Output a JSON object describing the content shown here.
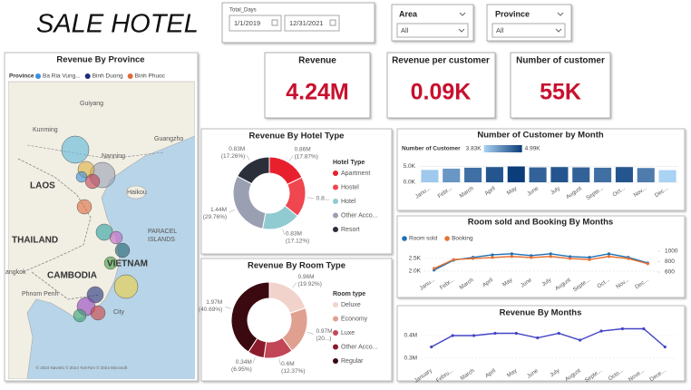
{
  "header": {
    "title": "SALE HOTEL"
  },
  "filters": {
    "date": {
      "label": "Total_Days",
      "start": "1/1/2019",
      "end": "12/31/2021"
    },
    "area": {
      "label": "Area",
      "value": "All"
    },
    "province": {
      "label": "Province",
      "value": "All"
    }
  },
  "kpis": [
    {
      "label": "Revenue",
      "value": "4.24M"
    },
    {
      "label": "Revenue per customer",
      "value": "0.09K"
    },
    {
      "label": "Number of customer",
      "value": "55K"
    }
  ],
  "map": {
    "title": "Revenue By Province",
    "legend_title": "Province",
    "legend": [
      {
        "name": "Ba Ria Vung...",
        "color": "#3a8fdc"
      },
      {
        "name": "Binh Duong",
        "color": "#1f2d7a"
      },
      {
        "name": "Binh Phuoc",
        "color": "#e06b3a"
      }
    ],
    "labels": [
      "Guiyang",
      "Kunming",
      "Nanning",
      "Guangzho",
      "LAOS",
      "Haikou",
      "THAILAND",
      "PARACEL",
      "ISLANDS",
      "CAMBODIA",
      "VIETNAM",
      "angkok",
      "Phnom Penh",
      "City"
    ],
    "attribution": "© 2024 NavInfo © 2024 TomTom © 2024 Microsoft"
  },
  "chart_data": [
    {
      "type": "donut",
      "title": "Revenue By Hotel Type",
      "legend_title": "Hotel Type",
      "categories": [
        "Apartment",
        "Hostel",
        "Hotel",
        "Other Acco...",
        "Resort"
      ],
      "values": [
        0.86,
        0.87,
        0.83,
        1.44,
        0.83
      ],
      "value_labels": [
        "0.86M",
        "0.8...",
        "0.83M",
        "1.44M",
        "0.83M"
      ],
      "percents": [
        17.87,
        null,
        17.12,
        29.76,
        17.26
      ],
      "percent_labels": [
        "(17.87%)",
        null,
        "(17.12%)",
        "(29.76%)",
        "(17.26%)"
      ],
      "colors": [
        "#e8202e",
        "#f0464f",
        "#8fcbd0",
        "#9aa0b2",
        "#2b2f3a"
      ]
    },
    {
      "type": "donut",
      "title": "Revenue By Room Type",
      "legend_title": "Room type",
      "categories": [
        "Deluxe",
        "Economy",
        "Luxe",
        "Other Acco...",
        "Regular"
      ],
      "values": [
        0.96,
        0.97,
        0.6,
        0.34,
        1.97
      ],
      "value_labels": [
        "0.96M",
        "0.97M",
        "0.6M",
        "0.34M",
        "1.97M"
      ],
      "percents": [
        19.92,
        20.07,
        12.37,
        6.95,
        40.69
      ],
      "percent_labels": [
        "(19.92%)",
        "(20...)",
        "(12.37%)",
        "(6.95%)",
        "(40.69%)"
      ],
      "colors": [
        "#f2d3cb",
        "#e0a08f",
        "#c24656",
        "#8b1a2a",
        "#3a0a10"
      ]
    },
    {
      "type": "bar",
      "title": "Number of Customer by Month",
      "legend_title": "Number of Customer",
      "color_scale": {
        "min": 3.83,
        "max": 4.99,
        "min_label": "3.83K",
        "max_label": "4.99K",
        "colors": [
          "#a9d2f3",
          "#0b3d7a"
        ]
      },
      "categories": [
        "Janu...",
        "Febr...",
        "March",
        "April",
        "May",
        "June",
        "July",
        "August",
        "Septe...",
        "Oct...",
        "Nov...",
        "Dec..."
      ],
      "values": [
        3.9,
        4.3,
        4.6,
        4.8,
        4.99,
        4.7,
        4.8,
        4.7,
        4.6,
        4.8,
        4.5,
        3.83
      ],
      "ylim": [
        0,
        6
      ],
      "yticks": [
        {
          "value": 0,
          "label": "0.0K"
        },
        {
          "value": 5,
          "label": "5.0K"
        }
      ],
      "grid": true
    },
    {
      "type": "line",
      "title": "Room sold and Booking By Months",
      "categories": [
        "Janu...",
        "Febr...",
        "March",
        "April",
        "May",
        "June",
        "July",
        "August",
        "Septe...",
        "Oct...",
        "Nov...",
        "Dec..."
      ],
      "series": [
        {
          "name": "Room sold",
          "color": "#1f6fb5",
          "values": [
            2.04,
            2.43,
            2.54,
            2.64,
            2.68,
            2.61,
            2.68,
            2.57,
            2.54,
            2.68,
            2.54,
            2.32
          ]
        },
        {
          "name": "Booking",
          "color": "#e87030",
          "axis": "y2",
          "values": [
            670,
            840,
            860,
            880,
            900,
            880,
            900,
            860,
            840,
            900,
            860,
            760
          ]
        }
      ],
      "ylim": [
        1.89,
        2.96
      ],
      "yticks": [
        {
          "value": 2,
          "label": "2.0K"
        },
        {
          "value": 2.5,
          "label": "2.5K"
        }
      ],
      "y2lim": [
        565,
        1087
      ],
      "y2ticks": [
        600,
        800,
        1000
      ],
      "grid": true
    },
    {
      "type": "line",
      "title": "Revenue By Months",
      "categories": [
        "January",
        "Febru...",
        "March",
        "April",
        "May",
        "June",
        "July",
        "August",
        "Septe...",
        "Octo...",
        "Nove...",
        "Dece..."
      ],
      "series": [
        {
          "name": "Revenue",
          "color": "#4444c8",
          "values": [
            0.35,
            0.4,
            0.4,
            0.41,
            0.41,
            0.39,
            0.41,
            0.38,
            0.42,
            0.43,
            0.43,
            0.35
          ]
        }
      ],
      "ylim": [
        0.272,
        0.448
      ],
      "yticks": [
        {
          "value": 0.3,
          "label": "0.3M"
        },
        {
          "value": 0.4,
          "label": "0.4M"
        }
      ],
      "grid": true,
      "show_legend": false
    }
  ]
}
